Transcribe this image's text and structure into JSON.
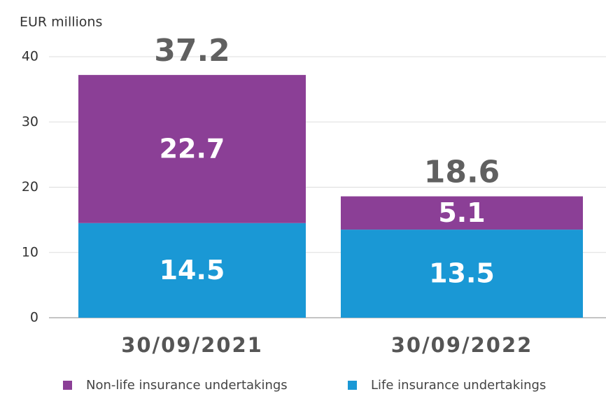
{
  "chart_data": {
    "type": "stacked_bar",
    "y_label": "EUR millions",
    "categories": [
      "30/09/2021",
      "30/09/2022"
    ],
    "series": [
      {
        "name": "Non-life insurance undertakings",
        "color": "#8b3f96",
        "values": [
          22.7,
          5.1
        ]
      },
      {
        "name": "Life insurance undertakings",
        "color": "#1a98d5",
        "values": [
          14.5,
          13.5
        ]
      }
    ],
    "totals": [
      37.2,
      18.6
    ],
    "ylim": [
      0,
      40
    ],
    "yticks": [
      0,
      10,
      20,
      30,
      40
    ],
    "grid": true,
    "legend": "bottom"
  }
}
